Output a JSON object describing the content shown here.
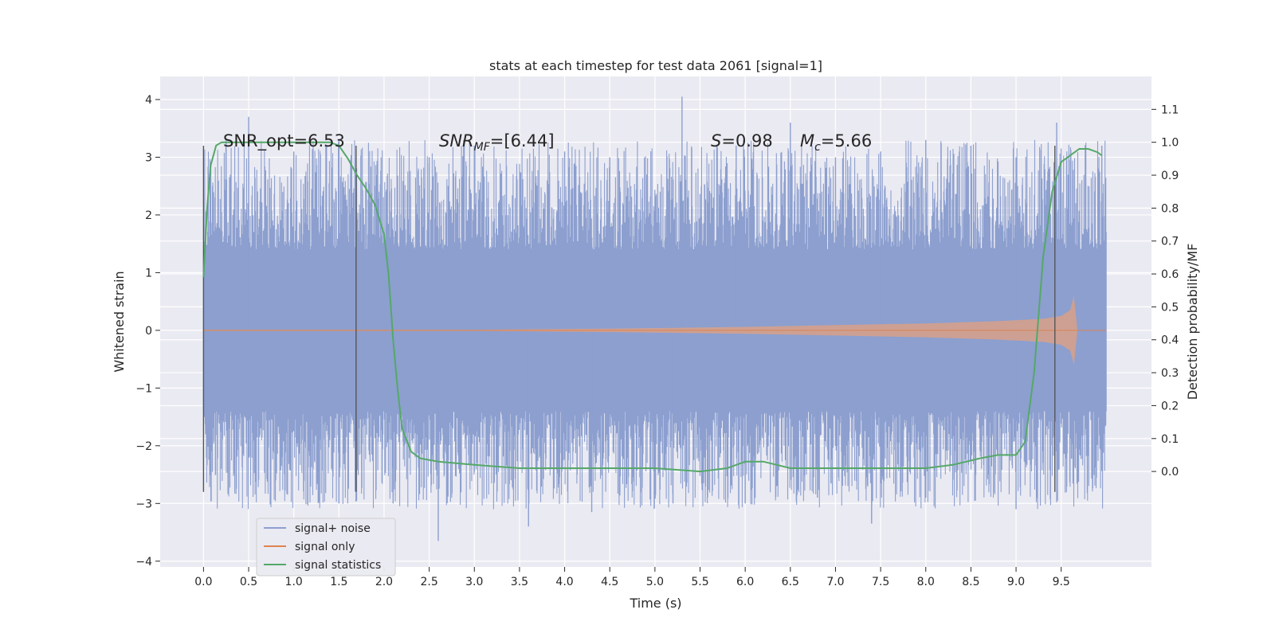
{
  "chart_data": {
    "type": "line",
    "title": "stats at each timestep for test data 2061 [signal=1]",
    "xlabel": "Time (s)",
    "ylabel": "Whitened strain",
    "y2label": "Detection probability/MF",
    "xlim": [
      -0.48,
      10.5
    ],
    "ylim": [
      -4.1,
      4.4
    ],
    "y2lim": [
      -0.29,
      1.2
    ],
    "x_ticks": [
      "0.0",
      "0.5",
      "1.0",
      "1.5",
      "2.0",
      "2.5",
      "3.0",
      "3.5",
      "4.0",
      "4.5",
      "5.0",
      "5.5",
      "6.0",
      "6.5",
      "7.0",
      "7.5",
      "8.0",
      "8.5",
      "9.0",
      "9.5"
    ],
    "x_tick_values": [
      0.0,
      0.5,
      1.0,
      1.5,
      2.0,
      2.5,
      3.0,
      3.5,
      4.0,
      4.5,
      5.0,
      5.5,
      6.0,
      6.5,
      7.0,
      7.5,
      8.0,
      8.5,
      9.0,
      9.5
    ],
    "y_ticks": [
      "4",
      "3",
      "2",
      "1",
      "0",
      "−1",
      "−2",
      "−3",
      "−4"
    ],
    "y_tick_values": [
      4,
      3,
      2,
      1,
      0,
      -1,
      -2,
      -3,
      -4
    ],
    "y2_ticks": [
      "1.1",
      "1.0",
      "0.9",
      "0.8",
      "0.7",
      "0.6",
      "0.5",
      "0.4",
      "0.3",
      "0.2",
      "0.1",
      "0.0"
    ],
    "y2_tick_values": [
      1.1,
      1.0,
      0.9,
      0.8,
      0.7,
      0.6,
      0.5,
      0.4,
      0.3,
      0.2,
      0.1,
      0.0
    ],
    "grid": true,
    "legend_position": "lower-left",
    "annotations": {
      "snr_opt": "SNR_opt=6.53",
      "snr_mf_main": "SNR",
      "snr_mf_sub": "MF",
      "snr_mf_rest": "=[6.44]",
      "s_label": "S",
      "s_rest": "=0.98",
      "mc_label": "M",
      "mc_sub": "c",
      "mc_rest": "=5.66"
    },
    "vertical_markers": [
      0.0,
      1.69,
      9.43
    ],
    "series": [
      {
        "name": "signal+ noise",
        "color": "#8c9fcf",
        "x_range": [
          0.0,
          10.0
        ],
        "band_y": [
          -1.4,
          1.4
        ],
        "peaks_up": [
          [
            0.5,
            3.7
          ],
          [
            1.0,
            3.1
          ],
          [
            1.5,
            3.3
          ],
          [
            2.5,
            3.0
          ],
          [
            3.0,
            3.2
          ],
          [
            4.0,
            3.1
          ],
          [
            4.5,
            3.0
          ],
          [
            5.3,
            4.05
          ],
          [
            5.9,
            3.2
          ],
          [
            6.5,
            3.6
          ],
          [
            7.0,
            3.0
          ],
          [
            7.5,
            3.1
          ],
          [
            8.0,
            3.3
          ],
          [
            8.5,
            3.2
          ],
          [
            9.0,
            3.0
          ],
          [
            9.45,
            3.6
          ],
          [
            9.95,
            3.2
          ]
        ],
        "peaks_down": [
          [
            0.2,
            -2.4
          ],
          [
            0.8,
            -2.6
          ],
          [
            1.5,
            -3.0
          ],
          [
            2.1,
            -3.0
          ],
          [
            2.6,
            -3.65
          ],
          [
            3.6,
            -3.4
          ],
          [
            4.3,
            -3.15
          ],
          [
            5.2,
            -3.0
          ],
          [
            6.0,
            -3.0
          ],
          [
            6.8,
            -2.9
          ],
          [
            7.4,
            -3.35
          ],
          [
            8.0,
            -2.9
          ],
          [
            9.0,
            -3.1
          ],
          [
            9.95,
            -2.4
          ]
        ]
      },
      {
        "name": "signal only",
        "color": "#dd8452",
        "x": [
          0.0,
          3.0,
          4.5,
          6.0,
          7.0,
          8.0,
          8.8,
          9.3,
          9.5,
          9.6,
          9.64,
          9.68,
          10.0
        ],
        "amp": [
          0.01,
          0.01,
          0.03,
          0.06,
          0.09,
          0.12,
          0.16,
          0.2,
          0.25,
          0.35,
          0.6,
          0.0,
          0.0
        ]
      },
      {
        "name": "signal statistics",
        "color": "#55a868",
        "x": [
          0.0,
          0.04,
          0.08,
          0.14,
          0.2,
          0.4,
          0.8,
          1.2,
          1.4,
          1.5,
          1.6,
          1.7,
          1.8,
          1.9,
          2.0,
          2.05,
          2.1,
          2.15,
          2.2,
          2.3,
          2.4,
          2.6,
          3.0,
          3.5,
          4.0,
          4.5,
          5.0,
          5.5,
          5.8,
          6.0,
          6.2,
          6.5,
          6.8,
          7.0,
          7.5,
          8.0,
          8.3,
          8.6,
          8.8,
          9.0,
          9.1,
          9.2,
          9.3,
          9.4,
          9.5,
          9.6,
          9.7,
          9.8,
          9.9,
          9.95
        ],
        "y": [
          0.59,
          0.8,
          0.93,
          0.99,
          1.0,
          1.0,
          1.0,
          1.0,
          1.0,
          0.99,
          0.95,
          0.9,
          0.86,
          0.81,
          0.72,
          0.6,
          0.4,
          0.25,
          0.13,
          0.06,
          0.04,
          0.03,
          0.02,
          0.01,
          0.01,
          0.01,
          0.01,
          0.0,
          0.01,
          0.03,
          0.03,
          0.01,
          0.01,
          0.01,
          0.01,
          0.01,
          0.02,
          0.04,
          0.05,
          0.05,
          0.09,
          0.3,
          0.65,
          0.85,
          0.94,
          0.96,
          0.98,
          0.98,
          0.97,
          0.96
        ]
      }
    ]
  }
}
